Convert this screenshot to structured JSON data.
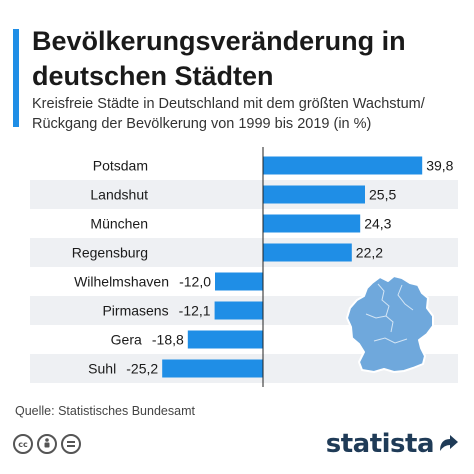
{
  "title": "Bevölkerungsveränderung in deutschen Städten",
  "subtitle": "Kreisfreie Städte in Deutschland mit dem größten Wachstum/ Rückgang der Bevölkerung von 1999 bis 2019 (in %)",
  "source": "Quelle: Statistisches Bundesamt",
  "logo": "statista",
  "icons": [
    "creative-commons-icon",
    "attribution-icon",
    "no-derivatives-icon"
  ],
  "colors": {
    "bar": "#1f8ee6",
    "accent": "#1f8ee6",
    "map": "#6fa8dc",
    "row_stripe": "#eef0f3"
  },
  "chart_data": {
    "type": "bar",
    "orientation": "horizontal",
    "categories": [
      "Potsdam",
      "Landshut",
      "München",
      "Regensburg",
      "Wilhelmshaven",
      "Pirmasens",
      "Gera",
      "Suhl"
    ],
    "values": [
      39.8,
      25.5,
      24.3,
      22.2,
      -12.0,
      -12.1,
      -18.8,
      -25.2
    ],
    "value_labels": [
      "39,8",
      "25,5",
      "24,3",
      "22,2",
      "-12,0",
      "-12,1",
      "-18,8",
      "-25,2"
    ],
    "xlim": [
      -29,
      45
    ],
    "grid": false
  }
}
